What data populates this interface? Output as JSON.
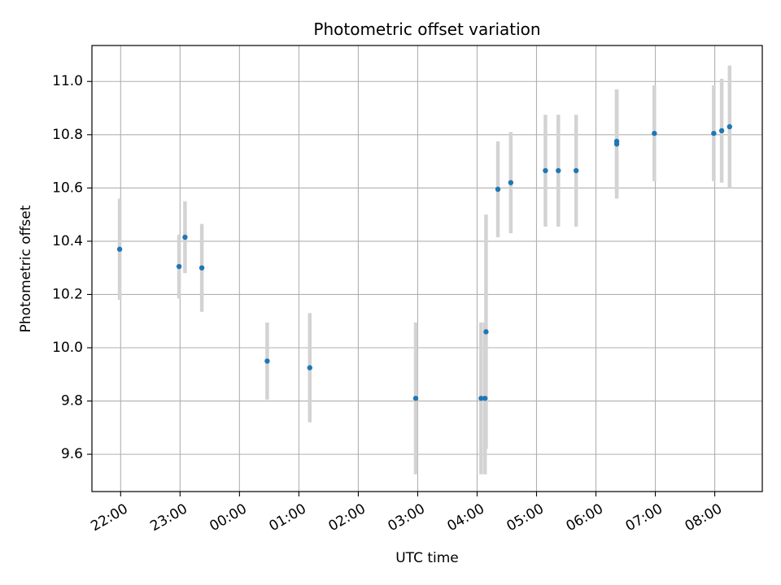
{
  "chart_data": {
    "type": "scatter",
    "title": "Photometric offset variation",
    "xlabel": "UTC time",
    "ylabel": "Photometric offset",
    "grid": true,
    "x_tick_labels": [
      "22:00",
      "23:00",
      "00:00",
      "01:00",
      "02:00",
      "03:00",
      "04:00",
      "05:00",
      "06:00",
      "07:00",
      "08:00"
    ],
    "x_tick_times": [
      "22:00",
      "23:00",
      "24:00",
      "25:00",
      "26:00",
      "27:00",
      "28:00",
      "29:00",
      "30:00",
      "31:00",
      "32:00"
    ],
    "xlim": [
      "21:31",
      "32:48"
    ],
    "y_tick_labels": [
      "9.6",
      "9.8",
      "10.0",
      "10.2",
      "10.4",
      "10.6",
      "10.8",
      "11.0"
    ],
    "y_ticks": [
      9.6,
      9.8,
      10.0,
      10.2,
      10.4,
      10.6,
      10.8,
      11.0
    ],
    "ylim": [
      9.46,
      11.135
    ],
    "marker_color": "#1f77b4",
    "errorbar_color": "#d3d3d3",
    "points": [
      {
        "t": "21:59",
        "y": 10.37,
        "err": 0.19
      },
      {
        "t": "22:59",
        "y": 10.305,
        "err": 0.12
      },
      {
        "t": "23:05",
        "y": 10.415,
        "err": 0.135
      },
      {
        "t": "23:22",
        "y": 10.3,
        "err": 0.165
      },
      {
        "t": "24:28",
        "y": 9.95,
        "err": 0.145
      },
      {
        "t": "25:11",
        "y": 9.925,
        "err": 0.205
      },
      {
        "t": "26:58",
        "y": 9.81,
        "err": 0.285
      },
      {
        "t": "28:04",
        "y": 9.81,
        "err": 0.285
      },
      {
        "t": "28:08",
        "y": 9.81,
        "err": 0.285
      },
      {
        "t": "28:09",
        "y": 10.06,
        "err": 0.44
      },
      {
        "t": "28:21",
        "y": 10.595,
        "err": 0.18
      },
      {
        "t": "28:34",
        "y": 10.62,
        "err": 0.19
      },
      {
        "t": "29:09",
        "y": 10.665,
        "err": 0.21
      },
      {
        "t": "29:22",
        "y": 10.665,
        "err": 0.21
      },
      {
        "t": "29:40",
        "y": 10.665,
        "err": 0.21
      },
      {
        "t": "30:21",
        "y": 10.765,
        "err": 0.205
      },
      {
        "t": "30:21",
        "y": 10.775,
        "err": 0.195
      },
      {
        "t": "30:59",
        "y": 10.805,
        "err": 0.18
      },
      {
        "t": "31:59",
        "y": 10.805,
        "err": 0.18
      },
      {
        "t": "32:07",
        "y": 10.815,
        "err": 0.195
      },
      {
        "t": "32:15",
        "y": 10.83,
        "err": 0.23
      }
    ]
  }
}
